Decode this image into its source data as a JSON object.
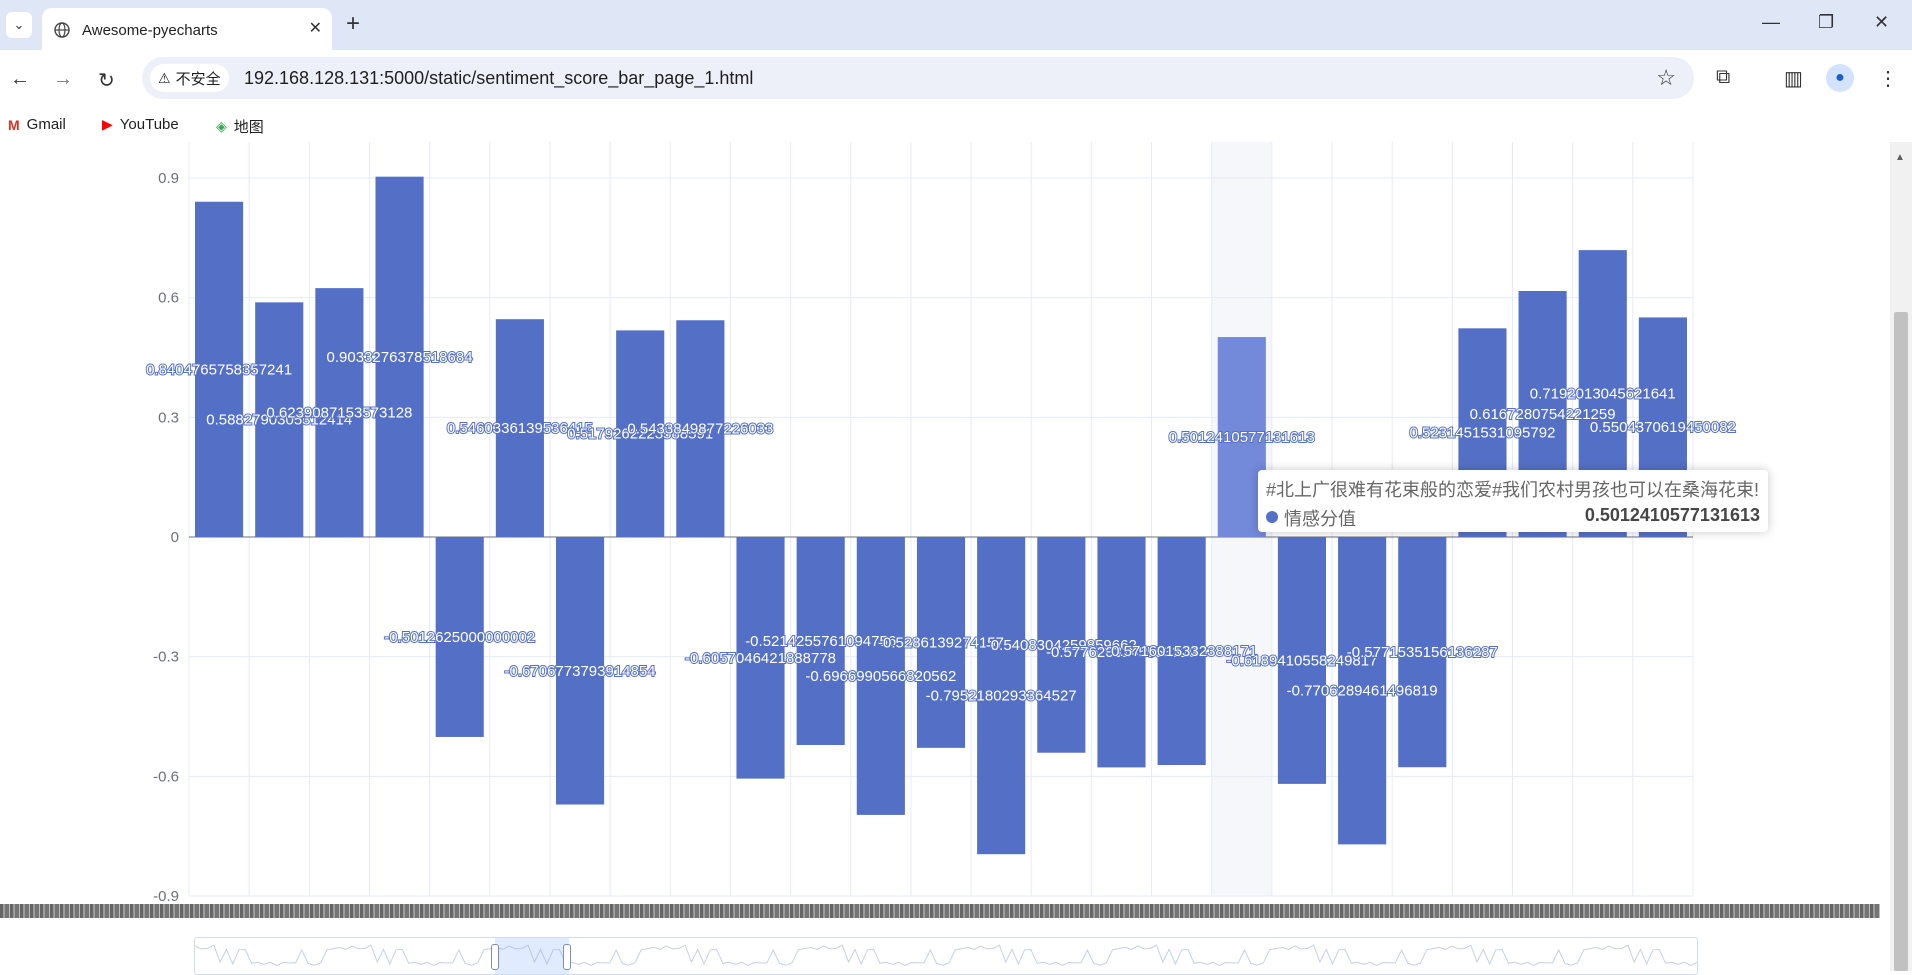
{
  "browser": {
    "tab_title": "Awesome-pyecharts",
    "tab_close": "✕",
    "new_tab": "+",
    "security_label": "不安全",
    "url": "192.168.128.131:5000/static/sentiment_score_bar_page_1.html",
    "bookmarks": [
      "Gmail",
      "YouTube",
      "地图"
    ],
    "window_controls": [
      "—",
      "❐",
      "✕"
    ],
    "icons": {
      "back": "back-arrow-icon",
      "forward": "forward-arrow-icon",
      "reload": "reload-icon",
      "star": "bookmark-star-icon",
      "extensions": "puzzle-icon",
      "sidepanel": "sidepanel-icon",
      "profile": "profile-avatar-icon",
      "menu": "kebab-menu-icon"
    }
  },
  "tooltip": {
    "title": "#北上广很难有花束般的恋爱#我们农村男孩也可以在桑海花束!",
    "series_name": "情感分值",
    "value": "0.5012410577131613"
  },
  "colors": {
    "bar": "#5470c6",
    "bar_emphasis": "#7389da",
    "highlight_band": "#f6f7fb",
    "grid": "#e6ebf5"
  },
  "chart_data": {
    "type": "bar",
    "title": "",
    "xlabel": "",
    "ylabel": "",
    "ylim": [
      -0.9,
      0.9
    ],
    "yticks": [
      "0.9",
      "0.6",
      "0.3",
      "0",
      "-0.3",
      "-0.6",
      "-0.9"
    ],
    "grid": true,
    "highlighted_index": 17,
    "series": [
      {
        "name": "情感分值",
        "values": [
          0.8404765758357241,
          0.5882790305312414,
          0.6239087153573128,
          0.9033276378518684,
          -0.5012625000000002,
          0.5460336139536415,
          -0.6706773793914854,
          0.5179262223588591,
          0.5433849877226034,
          -0.6057046421888778,
          -0.5214255761094756,
          -0.6966990566820562,
          -0.5286139274157,
          -0.7952180293364527,
          -0.5408304259859662,
          -0.5776203145553319,
          -0.5716015332388171,
          0.5012410577131613,
          -0.6189410558249817,
          -0.7706289461496819,
          -0.5771535156136287,
          0.5231451531095792,
          0.6167280754221259,
          0.7192013045621641,
          0.5504370619450082
        ],
        "labels": [
          "0.8404765758357241",
          "0.5882790305312414",
          "0.6239087153573128",
          "0.9033276378518684",
          "-0.5012625000000002",
          "0.5460336139536415",
          "-0.6706773793914854",
          "0.5179262223588591",
          "0.5433849877226033",
          "-0.6057046421888778",
          "-0.5214255761094756",
          "-0.6966990566820562",
          "-0.5286139274157",
          "-0.7952180293364527",
          "-0.5408304259859662",
          "-0.5776203145553319",
          "-0.5716015332388171",
          "0.5012410577131613",
          "-0.6189410558249817",
          "-0.7706289461496819",
          "-0.5771535156136287",
          "0.5231451531095792",
          "0.6167280754221259",
          "0.7192013045621641",
          "0.5504370619450082"
        ]
      }
    ]
  }
}
